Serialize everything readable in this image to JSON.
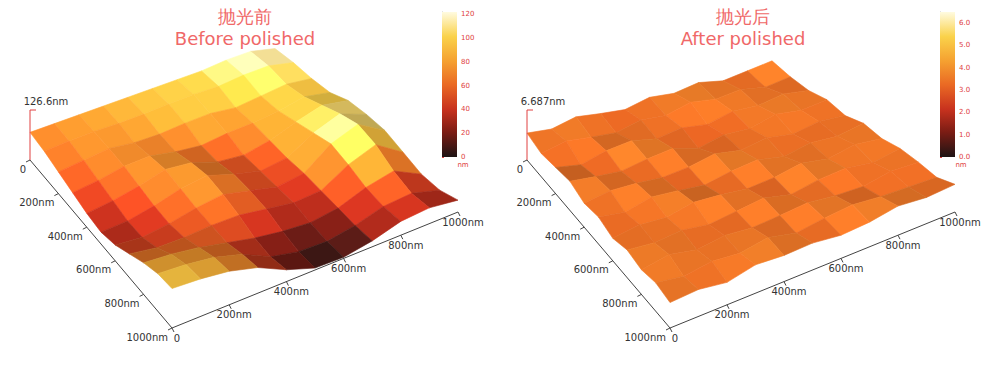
{
  "chart_data": [
    {
      "type": "surface",
      "title": "抛光前",
      "subtitle": "Before polished",
      "x": [
        0,
        100,
        200,
        300,
        400,
        500,
        600,
        700,
        800,
        900,
        1000
      ],
      "y": [
        0,
        100,
        200,
        300,
        400,
        500,
        600,
        700,
        800,
        900,
        1000
      ],
      "z": [
        [
          70,
          75,
          80,
          85,
          90,
          95,
          100,
          105,
          115,
          120,
          110
        ],
        [
          65,
          72,
          78,
          80,
          85,
          92,
          98,
          100,
          110,
          115,
          105
        ],
        [
          55,
          65,
          75,
          70,
          72,
          80,
          85,
          80,
          90,
          100,
          95
        ],
        [
          45,
          55,
          70,
          75,
          65,
          60,
          70,
          75,
          85,
          100,
          90
        ],
        [
          35,
          45,
          60,
          80,
          75,
          55,
          50,
          65,
          90,
          110,
          100
        ],
        [
          30,
          35,
          50,
          70,
          80,
          60,
          45,
          55,
          95,
          120,
          95
        ],
        [
          40,
          35,
          45,
          60,
          70,
          55,
          40,
          50,
          100,
          125,
          85
        ],
        [
          60,
          50,
          50,
          55,
          55,
          45,
          35,
          40,
          80,
          105,
          60
        ],
        [
          80,
          75,
          65,
          50,
          35,
          25,
          20,
          30,
          55,
          70,
          35
        ],
        [
          95,
          90,
          80,
          60,
          25,
          10,
          8,
          20,
          40,
          45,
          25
        ],
        [
          100,
          95,
          85,
          65,
          30,
          5,
          3,
          15,
          35,
          40,
          30
        ]
      ],
      "xlim": [
        0,
        1000
      ],
      "ylim": [
        0,
        1000
      ],
      "xticks": [
        0,
        {
          "value": 200,
          "label": "200nm"
        },
        {
          "value": 400,
          "label": "400nm"
        },
        {
          "value": 600,
          "label": "600nm"
        },
        {
          "value": 800,
          "label": "800nm"
        },
        {
          "value": 1000,
          "label": "1000nm"
        }
      ],
      "yticks": [
        0,
        {
          "value": 200,
          "label": "200nm"
        },
        {
          "value": 400,
          "label": "400nm"
        },
        {
          "value": 600,
          "label": "600nm"
        },
        {
          "value": 800,
          "label": "800nm"
        },
        {
          "value": 1000,
          "label": "1000nm"
        }
      ],
      "zlim": [
        0,
        126.6
      ],
      "zticks": [
        {
          "value": 126.6,
          "label": "126.6nm"
        }
      ],
      "colorbar_range": [
        0,
        122
      ],
      "colorbar_ticks": [
        0,
        20,
        40,
        60,
        80,
        100,
        120
      ],
      "colorbar_unit": "nm"
    },
    {
      "type": "surface",
      "title": "抛光后",
      "subtitle": "After polished",
      "x": [
        0,
        100,
        200,
        300,
        400,
        500,
        600,
        700,
        800,
        900,
        1000
      ],
      "y": [
        0,
        100,
        200,
        300,
        400,
        500,
        600,
        700,
        800,
        900,
        1000
      ],
      "z": [
        [
          3.6,
          3.2,
          3.9,
          3.4,
          3.0,
          3.7,
          3.3,
          3.8,
          3.1,
          3.5,
          3.9
        ],
        [
          3.1,
          3.8,
          3.3,
          2.9,
          3.6,
          3.2,
          4.0,
          3.4,
          3.7,
          3.0,
          3.4
        ],
        [
          3.5,
          2.8,
          3.6,
          3.9,
          3.1,
          3.5,
          2.9,
          3.6,
          3.3,
          3.8,
          3.2
        ],
        [
          3.9,
          3.4,
          3.0,
          3.5,
          3.8,
          2.7,
          3.4,
          3.1,
          3.9,
          3.3,
          3.6
        ],
        [
          3.2,
          3.7,
          3.5,
          3.1,
          3.3,
          3.9,
          3.2,
          3.7,
          3.0,
          3.5,
          3.1
        ],
        [
          3.6,
          3.0,
          3.8,
          3.4,
          2.9,
          3.5,
          3.8,
          3.0,
          3.6,
          3.2,
          3.7
        ],
        [
          3.0,
          3.5,
          3.2,
          3.9,
          3.6,
          3.1,
          3.3,
          3.9,
          3.2,
          3.8,
          3.3
        ],
        [
          3.7,
          3.3,
          3.6,
          3.0,
          3.4,
          3.8,
          2.9,
          3.5,
          3.7,
          3.1,
          3.6
        ],
        [
          3.3,
          3.9,
          3.1,
          3.6,
          3.2,
          3.4,
          3.7,
          3.2,
          3.0,
          3.6,
          3.4
        ],
        [
          3.8,
          3.2,
          3.7,
          3.3,
          3.9,
          3.0,
          3.5,
          3.8,
          3.4,
          3.2,
          3.0
        ],
        [
          3.4,
          3.6,
          3.0,
          3.8,
          3.5,
          3.6,
          3.1,
          3.3,
          3.9,
          3.5,
          3.7
        ]
      ],
      "xlim": [
        0,
        1000
      ],
      "ylim": [
        0,
        1000
      ],
      "xticks": [
        0,
        {
          "value": 200,
          "label": "200nm"
        },
        {
          "value": 400,
          "label": "400nm"
        },
        {
          "value": 600,
          "label": "600nm"
        },
        {
          "value": 800,
          "label": "800nm"
        },
        {
          "value": 1000,
          "label": "1000nm"
        }
      ],
      "yticks": [
        0,
        {
          "value": 200,
          "label": "200nm"
        },
        {
          "value": 400,
          "label": "400nm"
        },
        {
          "value": 600,
          "label": "600nm"
        },
        {
          "value": 800,
          "label": "800nm"
        },
        {
          "value": 1000,
          "label": "1000nm"
        }
      ],
      "zlim": [
        0,
        6.687
      ],
      "zticks": [
        {
          "value": 6.687,
          "label": "6.687nm"
        }
      ],
      "colorbar_range": [
        0,
        6.5
      ],
      "colorbar_ticks": [
        {
          "value": 0,
          "label": "0.0"
        },
        {
          "value": 1,
          "label": "1.0"
        },
        {
          "value": 2,
          "label": "2.0"
        },
        {
          "value": 3,
          "label": "3.0"
        },
        {
          "value": 4,
          "label": "4.0"
        },
        {
          "value": 5,
          "label": "5.0"
        },
        {
          "value": 6,
          "label": "6.0"
        }
      ],
      "colorbar_unit": "nm"
    }
  ]
}
